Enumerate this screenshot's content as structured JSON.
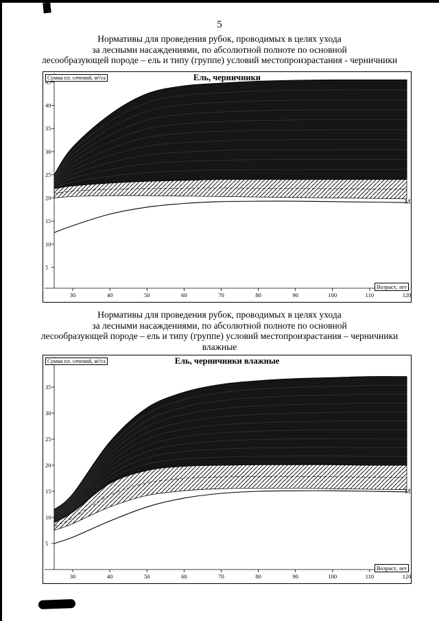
{
  "page": {
    "number": "5"
  },
  "headings": {
    "first": [
      "Нормативы для проведения рубок, проводимых в целях ухода",
      "за лесными насаждениями, по абсолютной полноте по основной",
      "лесообразующей породе – ель и типу (группе) условий местопроизрастания - черничники"
    ],
    "second": [
      "Нормативы для проведения рубок, проводимых в целях ухода",
      "за лесными насаждениями, по абсолютной полноте по основной",
      "лесообразующей породе – ель и типу (группе) условий местопроизрастания – черничники",
      "влажные"
    ]
  },
  "chart_data": [
    {
      "type": "area",
      "title": "Ель, черничники",
      "ylabel": "Сумма пл. сечений, м²/га",
      "xlabel": "Возраст, лет",
      "annotation": "М",
      "x": [
        25,
        30,
        40,
        50,
        60,
        70,
        80,
        90,
        100,
        110,
        120
      ],
      "xlim": [
        25,
        120
      ],
      "ylim": [
        0.5,
        46
      ],
      "xticks": [
        30,
        40,
        50,
        60,
        70,
        80,
        90,
        100,
        110,
        120
      ],
      "yticks": [
        45,
        40,
        35,
        30,
        25,
        20,
        15,
        10,
        5
      ],
      "grid": false,
      "legend": "none",
      "colors": {
        "band": "#161616",
        "hatch": "#111111"
      },
      "series": [
        {
          "name": "band_top",
          "values": [
            25,
            31,
            38,
            42.5,
            44.2,
            44.8,
            45.2,
            45.4,
            45.5,
            45.5,
            45.5
          ]
        },
        {
          "name": "band_bottom",
          "values": [
            22,
            22.6,
            23.2,
            23.6,
            23.8,
            24,
            24,
            24,
            24,
            24,
            24
          ]
        },
        {
          "name": "hatch_bottom",
          "values": [
            20,
            20.3,
            20.5,
            20.5,
            20.4,
            20.3,
            20.2,
            20.1,
            20,
            19.9,
            19.8
          ]
        },
        {
          "name": "min_curve_M",
          "values": [
            12.5,
            14,
            16.5,
            18,
            18.8,
            19.2,
            19.3,
            19.3,
            19.2,
            19.1,
            19
          ]
        }
      ]
    },
    {
      "type": "area",
      "title": "Ель, черничники влажные",
      "ylabel": "Сумма пл. сечений, м²/га",
      "xlabel": "Возраст, лет",
      "annotation": "М",
      "x": [
        25,
        30,
        40,
        50,
        60,
        70,
        80,
        90,
        100,
        110,
        120
      ],
      "xlim": [
        25,
        120
      ],
      "ylim": [
        0,
        40
      ],
      "xticks": [
        30,
        40,
        50,
        60,
        70,
        80,
        90,
        100,
        110,
        120
      ],
      "yticks": [
        35,
        30,
        25,
        20,
        15,
        10,
        5
      ],
      "grid": false,
      "legend": "none",
      "colors": {
        "band": "#161616",
        "hatch": "#111111"
      },
      "series": [
        {
          "name": "band_top",
          "values": [
            11.5,
            14.5,
            24.5,
            31,
            34,
            35.5,
            36.2,
            36.6,
            36.8,
            37,
            37
          ]
        },
        {
          "name": "band_bottom",
          "values": [
            9,
            11,
            16.5,
            19,
            19.8,
            20,
            20.1,
            20.1,
            20.1,
            20,
            20
          ]
        },
        {
          "name": "hatch_bottom",
          "values": [
            7.5,
            8.8,
            12,
            14.2,
            15.1,
            15.5,
            15.6,
            15.6,
            15.5,
            15.4,
            15.3
          ]
        },
        {
          "name": "min_curve_M",
          "values": [
            5,
            6.2,
            9.3,
            12,
            13.7,
            14.6,
            15,
            15.1,
            15.1,
            15,
            14.9
          ]
        }
      ]
    }
  ]
}
